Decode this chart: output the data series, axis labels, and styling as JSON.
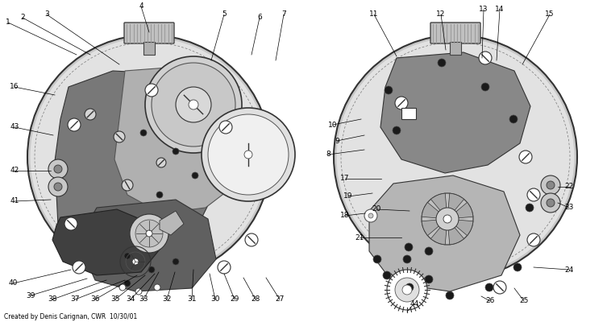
{
  "bg_color": "#ffffff",
  "credit": "Created by Denis Carignan, CWR  10/30/01",
  "left_top_labels": [
    [
      "1",
      10,
      28,
      95,
      68
    ],
    [
      "2",
      28,
      22,
      112,
      68
    ],
    [
      "3",
      58,
      18,
      148,
      80
    ],
    [
      "4",
      175,
      8,
      185,
      40
    ],
    [
      "5",
      278,
      18,
      262,
      75
    ],
    [
      "6",
      322,
      22,
      312,
      68
    ],
    [
      "7",
      352,
      18,
      342,
      75
    ]
  ],
  "left_side_labels": [
    [
      "16",
      18,
      108,
      68,
      118
    ],
    [
      "43",
      18,
      158,
      66,
      168
    ],
    [
      "42",
      18,
      212,
      63,
      212
    ],
    [
      "41",
      18,
      250,
      63,
      248
    ]
  ],
  "left_bot_labels": [
    [
      "40",
      16,
      352,
      88,
      335
    ],
    [
      "39",
      38,
      367,
      108,
      346
    ],
    [
      "38",
      65,
      372,
      132,
      348
    ],
    [
      "37",
      93,
      372,
      155,
      348
    ],
    [
      "36",
      118,
      372,
      170,
      342
    ],
    [
      "35",
      143,
      372,
      180,
      342
    ],
    [
      "34",
      162,
      372,
      192,
      340
    ],
    [
      "33",
      178,
      372,
      197,
      338
    ],
    [
      "32",
      207,
      372,
      217,
      338
    ],
    [
      "31",
      238,
      372,
      240,
      335
    ],
    [
      "30",
      267,
      372,
      260,
      340
    ],
    [
      "29",
      291,
      372,
      278,
      340
    ],
    [
      "28",
      317,
      372,
      302,
      345
    ],
    [
      "27",
      347,
      372,
      330,
      345
    ]
  ],
  "right_labels": [
    [
      "8",
      407,
      192,
      452,
      186
    ],
    [
      "9",
      418,
      175,
      452,
      168
    ],
    [
      "10",
      413,
      155,
      448,
      148
    ],
    [
      "11",
      464,
      18,
      492,
      70
    ],
    [
      "12",
      547,
      18,
      553,
      62
    ],
    [
      "13",
      600,
      12,
      598,
      72
    ],
    [
      "14",
      620,
      12,
      616,
      75
    ],
    [
      "15",
      682,
      18,
      648,
      80
    ],
    [
      "17",
      428,
      222,
      473,
      222
    ],
    [
      "18",
      428,
      268,
      453,
      265
    ],
    [
      "19",
      432,
      244,
      462,
      240
    ],
    [
      "20",
      467,
      260,
      508,
      262
    ],
    [
      "21",
      446,
      295,
      498,
      295
    ],
    [
      "22",
      706,
      232,
      692,
      232
    ],
    [
      "23",
      706,
      258,
      692,
      252
    ],
    [
      "24",
      706,
      335,
      662,
      332
    ],
    [
      "25",
      650,
      374,
      638,
      358
    ],
    [
      "26",
      608,
      374,
      597,
      368
    ],
    [
      "44",
      514,
      377,
      505,
      387
    ]
  ]
}
